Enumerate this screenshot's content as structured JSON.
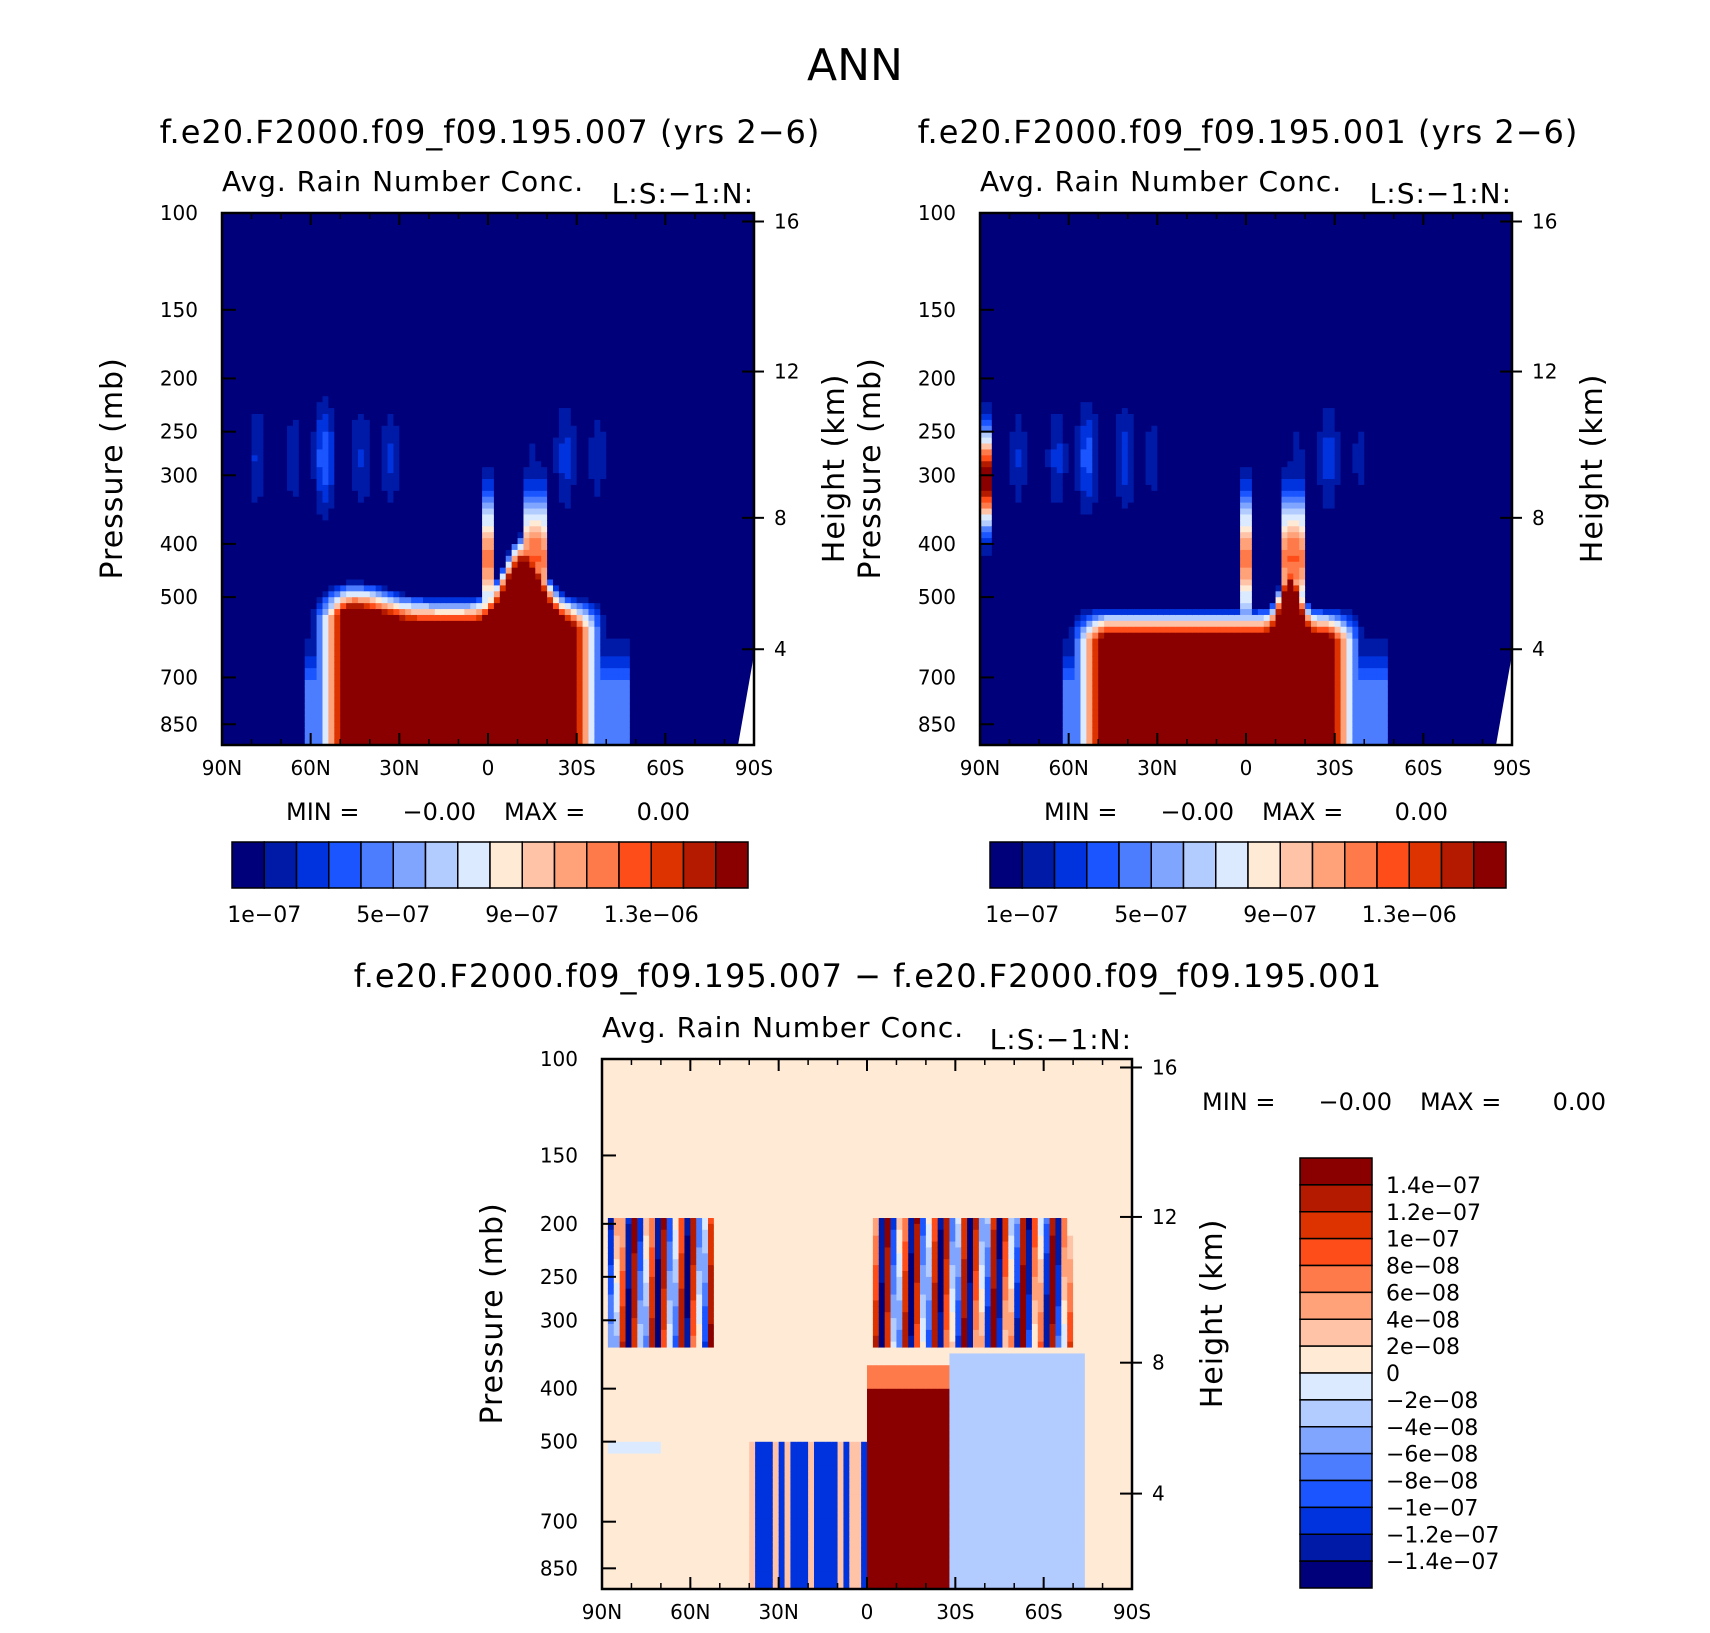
{
  "figure": {
    "title": "ANN",
    "case1_title": "f.e20.F2000.f09_f09.195.007 (yrs 2−6)",
    "case2_title": "f.e20.F2000.f09_f09.195.001 (yrs 2−6)",
    "diff_title": "f.e20.F2000.f09_f09.195.007 − f.e20.F2000.f09_f09.195.001"
  },
  "chart_data": [
    {
      "type": "heatmap",
      "title": "f.e20.F2000.f09_f09.195.007 (yrs 2−6)",
      "variable": "Avg. Rain Number Conc.",
      "level_label": "L:S:−1:N:",
      "ylabel": "Pressure (mb)",
      "ylabel_right": "Height (km)",
      "x_ticks": [
        "90N",
        "60N",
        "30N",
        "0",
        "30S",
        "60S",
        "90S"
      ],
      "y_ticks": [
        "100",
        "150",
        "200",
        "250",
        "300",
        "400",
        "500",
        "700",
        "850"
      ],
      "y_ticks_right": [
        "16",
        "12",
        "8",
        "4"
      ],
      "min_label": "MIN =",
      "min_value": "−0.00",
      "max_label": "MAX =",
      "max_value": "0.00",
      "colorbar_labels": [
        "1e−07",
        "5e−07",
        "9e−07",
        "1.3e−06"
      ],
      "colorbar_colors": [
        "#00007a",
        "#001aa8",
        "#0033dd",
        "#1a55ff",
        "#4d7dff",
        "#80a5ff",
        "#b3ccff",
        "#dbeaff",
        "#ffead6",
        "#ffc3a8",
        "#ffa27a",
        "#ff7a4a",
        "#ff4d1a",
        "#dd3300",
        "#b31a00",
        "#8a0000"
      ]
    },
    {
      "type": "heatmap",
      "title": "f.e20.F2000.f09_f09.195.001 (yrs 2−6)",
      "variable": "Avg. Rain Number Conc.",
      "level_label": "L:S:−1:N:",
      "ylabel": "Pressure (mb)",
      "ylabel_right": "Height (km)",
      "x_ticks": [
        "90N",
        "60N",
        "30N",
        "0",
        "30S",
        "60S",
        "90S"
      ],
      "y_ticks": [
        "100",
        "150",
        "200",
        "250",
        "300",
        "400",
        "500",
        "700",
        "850"
      ],
      "y_ticks_right": [
        "16",
        "12",
        "8",
        "4"
      ],
      "min_label": "MIN =",
      "min_value": "−0.00",
      "max_label": "MAX =",
      "max_value": "0.00",
      "colorbar_labels": [
        "1e−07",
        "5e−07",
        "9e−07",
        "1.3e−06"
      ],
      "colorbar_colors": [
        "#00007a",
        "#001aa8",
        "#0033dd",
        "#1a55ff",
        "#4d7dff",
        "#80a5ff",
        "#b3ccff",
        "#dbeaff",
        "#ffead6",
        "#ffc3a8",
        "#ffa27a",
        "#ff7a4a",
        "#ff4d1a",
        "#dd3300",
        "#b31a00",
        "#8a0000"
      ]
    },
    {
      "type": "heatmap",
      "title": "f.e20.F2000.f09_f09.195.007 − f.e20.F2000.f09_f09.195.001",
      "variable": "Avg. Rain Number Conc.",
      "level_label": "L:S:−1:N:",
      "ylabel": "Pressure (mb)",
      "ylabel_right": "Height (km)",
      "x_ticks": [
        "90N",
        "60N",
        "30N",
        "0",
        "30S",
        "60S",
        "90S"
      ],
      "y_ticks": [
        "100",
        "150",
        "200",
        "250",
        "300",
        "400",
        "500",
        "700",
        "850"
      ],
      "y_ticks_right": [
        "16",
        "12",
        "8",
        "4"
      ],
      "min_label": "MIN =",
      "min_value": "−0.00",
      "max_label": "MAX =",
      "max_value": "0.00",
      "colorbar_labels": [
        "1.4e−07",
        "1.2e−07",
        "1e−07",
        "8e−08",
        "6e−08",
        "4e−08",
        "2e−08",
        "0",
        "−2e−08",
        "−4e−08",
        "−6e−08",
        "−8e−08",
        "−1e−07",
        "−1.2e−07",
        "−1.4e−07"
      ],
      "colorbar_colors": [
        "#8a0000",
        "#b31a00",
        "#dd3300",
        "#ff4d1a",
        "#ff7a4a",
        "#ffa27a",
        "#ffc3a8",
        "#ffead6",
        "#dbeaff",
        "#b3ccff",
        "#80a5ff",
        "#4d7dff",
        "#1a55ff",
        "#0033dd",
        "#001aa8",
        "#00007a"
      ]
    }
  ]
}
